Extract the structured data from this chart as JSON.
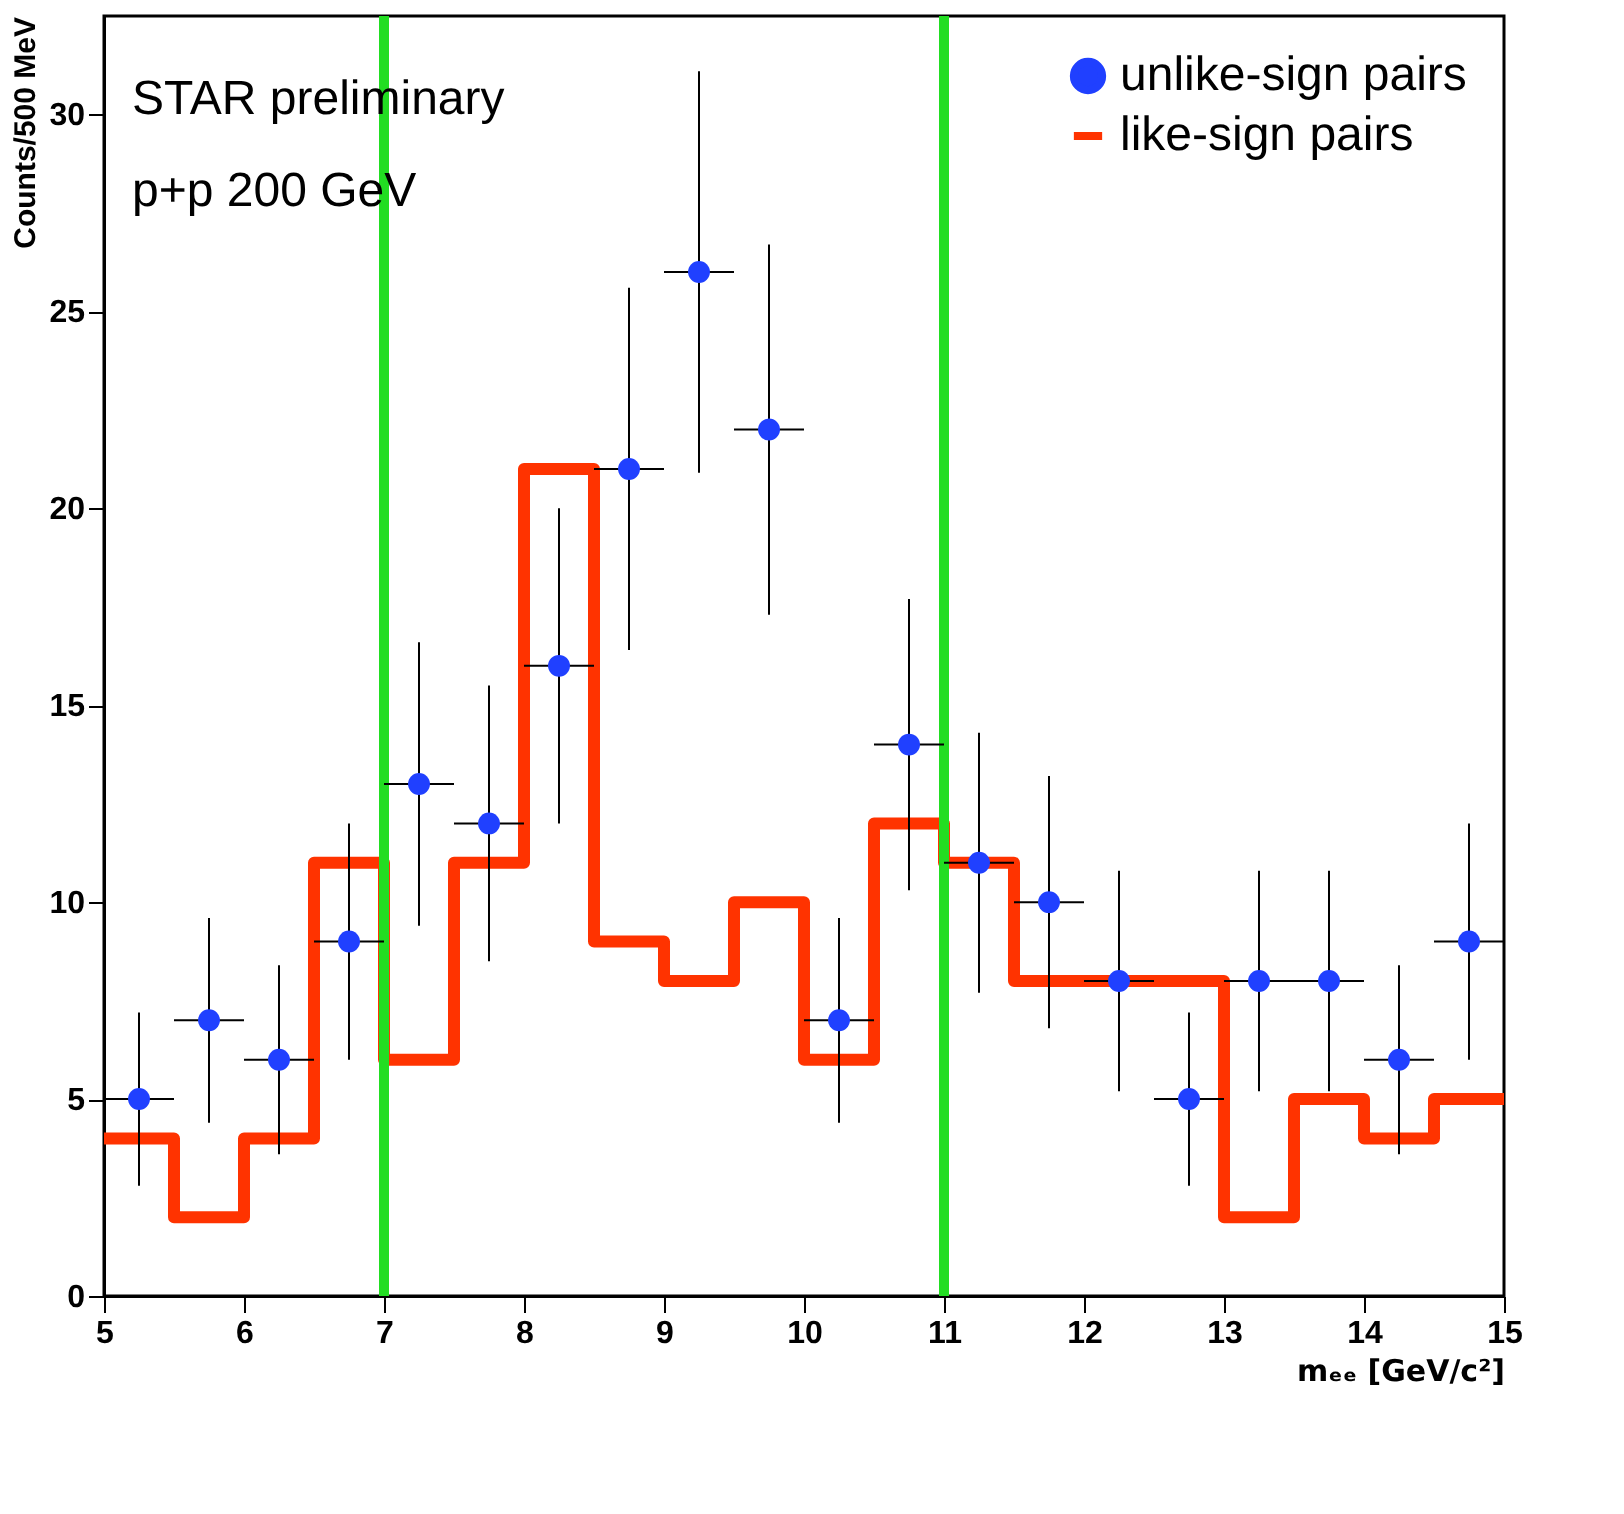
{
  "chart_data": {
    "type": "scatter",
    "xlabel": "mₑₑ [GeV/c²]",
    "ylabel": "Counts/500 MeV",
    "xlim": [
      5,
      15
    ],
    "ylim": [
      0,
      32.5
    ],
    "xticks": [
      5,
      6,
      7,
      8,
      9,
      10,
      11,
      12,
      13,
      14,
      15
    ],
    "yticks": [
      0,
      5,
      10,
      15,
      20,
      25,
      30
    ],
    "grid": false,
    "legend": "top right",
    "marker": "circle",
    "series": [
      {
        "name": "unlike-sign pairs",
        "type": "scatter",
        "color": "#2040ff",
        "x": [
          5.25,
          5.75,
          6.25,
          6.75,
          7.25,
          7.75,
          8.25,
          8.75,
          9.25,
          9.75,
          10.25,
          10.75,
          11.25,
          11.75,
          12.25,
          12.75,
          13.25,
          13.75,
          14.25,
          14.75
        ],
        "values": [
          5,
          7,
          6,
          9,
          13,
          12,
          16,
          21,
          26,
          22,
          7,
          14,
          11,
          10,
          8,
          5,
          8,
          8,
          6,
          9
        ],
        "errors": [
          2.2,
          2.6,
          2.4,
          3,
          3.6,
          3.5,
          4,
          4.6,
          5.1,
          4.7,
          2.6,
          3.7,
          3.3,
          3.2,
          2.8,
          2.2,
          2.8,
          2.8,
          2.4,
          3
        ],
        "xerrors": [
          0.25,
          0.25,
          0.25,
          0.25,
          0.25,
          0.25,
          0.25,
          0.25,
          0.25,
          0.25,
          0.25,
          0.25,
          0.25,
          0.25,
          0.25,
          0.25,
          0.25,
          0.25,
          0.25,
          0.25
        ]
      },
      {
        "name": "like-sign pairs",
        "type": "histogram",
        "color": "#ff3300",
        "bins": [
          5,
          5.5,
          6,
          6.5,
          7,
          7.5,
          8,
          8.5,
          9,
          9.5,
          10,
          10.5,
          11,
          11.5,
          12,
          12.5,
          13,
          13.5,
          14,
          14.5,
          15
        ],
        "values": [
          4,
          2,
          4,
          11,
          6,
          11,
          21,
          9,
          8,
          10,
          6,
          12,
          11,
          8,
          8,
          8,
          2,
          5,
          4,
          5
        ]
      }
    ],
    "ref_lines": [
      {
        "axis": "x",
        "value": 7,
        "color": "#22dd22"
      },
      {
        "axis": "x",
        "value": 11,
        "color": "#22dd22"
      }
    ],
    "annotations": [
      "STAR preliminary",
      "p+p 200 GeV"
    ]
  }
}
